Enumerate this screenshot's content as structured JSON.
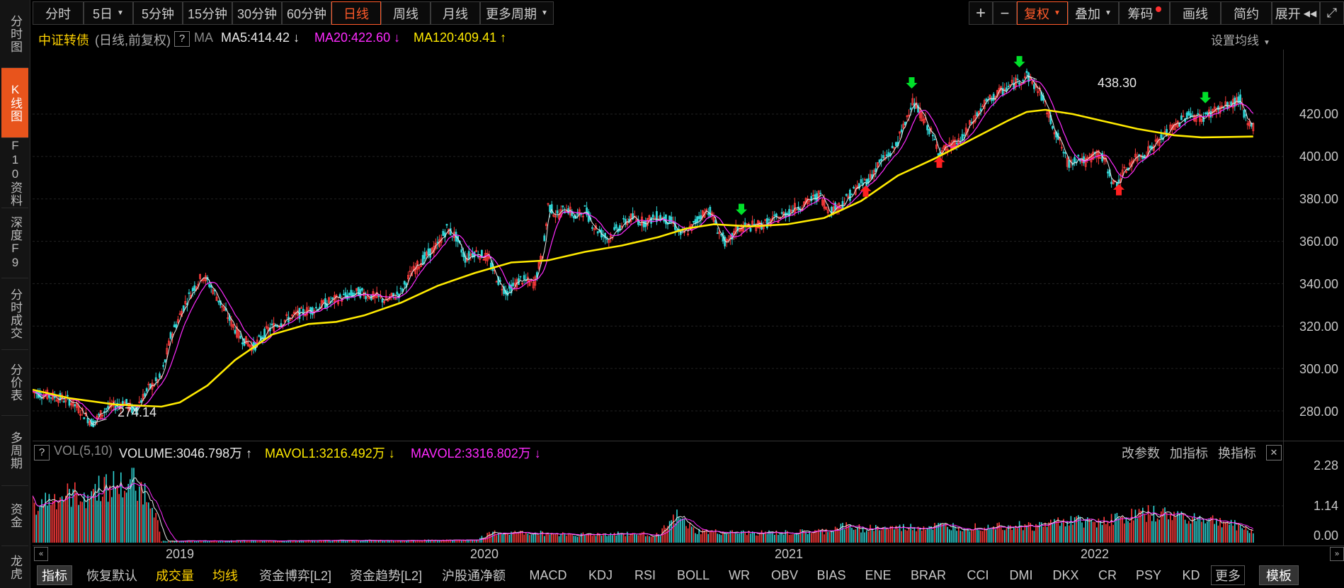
{
  "left_tabs": [
    {
      "label": "分时图"
    },
    {
      "label": "K线图"
    },
    {
      "label": "F10资料"
    },
    {
      "label": "深度F9"
    },
    {
      "label": "分时成交"
    },
    {
      "label": "分价表"
    },
    {
      "label": "多周期"
    },
    {
      "label": "资金"
    },
    {
      "label": "龙虎"
    }
  ],
  "toolbar": {
    "periods": [
      "分时",
      "5日",
      "5分钟",
      "15分钟",
      "30分钟",
      "60分钟",
      "日线",
      "周线",
      "月线",
      "更多周期"
    ],
    "active_period": "日线",
    "right": [
      "复权",
      "叠加",
      "筹码",
      "画线",
      "简约",
      "展开"
    ],
    "plus": "+",
    "minus": "−"
  },
  "header": {
    "name": "中证转债",
    "mode": "(日线,前复权)",
    "help": "?",
    "ma_label": "MA",
    "ma5": "MA5:414.42",
    "ma20": "MA20:422.60",
    "ma120": "MA120:409.41",
    "settings": "设置均线"
  },
  "vol_header": {
    "help": "?",
    "label": "VOL(5,10)",
    "volume": "VOLUME:3046.798万",
    "mavol1": "MAVOL1:3216.492万",
    "mavol2": "MAVOL2:3316.802万",
    "links": [
      "改参数",
      "加指标",
      "换指标"
    ],
    "close": "✕"
  },
  "annotations": {
    "high": "438.30",
    "low": "274.14"
  },
  "bottom_tabs": [
    "指标",
    "恢复默认",
    "成交量",
    "均线",
    "资金博弈[L2]",
    "资金趋势[L2]",
    "沪股通净额",
    "MACD",
    "KDJ",
    "RSI",
    "BOLL",
    "WR",
    "OBV",
    "BIAS",
    "ENE",
    "BRAR",
    "CCI",
    "DMI",
    "DKX",
    "CR",
    "PSY",
    "KD",
    "更多",
    "模板"
  ],
  "colors": {
    "up": "#ff3b3b",
    "down": "#2fd4d4",
    "ma5": "#e8e8e8",
    "ma20": "#ff2bff",
    "ma120": "#ffea00",
    "accent": "#e8541c"
  },
  "chart_data": [
    {
      "type": "candlestick",
      "title": "中证转债",
      "x_ticks": [
        "2019",
        "2020",
        "2021",
        "2022"
      ],
      "ylim": [
        265,
        448
      ],
      "y_ticks": [
        "280.00",
        "300.00",
        "320.00",
        "340.00",
        "360.00",
        "380.00",
        "400.00",
        "420.00"
      ],
      "price_path": [
        [
          0,
          289
        ],
        [
          20,
          287
        ],
        [
          40,
          285
        ],
        [
          55,
          279
        ],
        [
          65,
          274.14
        ],
        [
          80,
          281
        ],
        [
          100,
          284
        ],
        [
          110,
          280
        ],
        [
          125,
          290
        ],
        [
          140,
          296
        ],
        [
          150,
          315
        ],
        [
          165,
          330
        ],
        [
          175,
          338
        ],
        [
          185,
          344
        ],
        [
          195,
          338
        ],
        [
          210,
          326
        ],
        [
          225,
          315
        ],
        [
          240,
          310
        ],
        [
          255,
          318
        ],
        [
          270,
          322
        ],
        [
          290,
          326
        ],
        [
          305,
          328
        ],
        [
          320,
          331
        ],
        [
          340,
          334
        ],
        [
          355,
          336
        ],
        [
          370,
          334
        ],
        [
          385,
          332
        ],
        [
          400,
          336
        ],
        [
          410,
          344
        ],
        [
          425,
          352
        ],
        [
          440,
          358
        ],
        [
          450,
          366
        ],
        [
          460,
          362
        ],
        [
          470,
          352
        ],
        [
          480,
          355
        ],
        [
          495,
          352
        ],
        [
          505,
          342
        ],
        [
          515,
          336
        ],
        [
          530,
          342
        ],
        [
          545,
          340
        ],
        [
          555,
          356
        ],
        [
          560,
          377
        ],
        [
          570,
          372
        ],
        [
          580,
          376
        ],
        [
          590,
          371
        ],
        [
          600,
          375
        ],
        [
          610,
          367
        ],
        [
          625,
          361
        ],
        [
          635,
          366
        ],
        [
          650,
          371
        ],
        [
          665,
          369
        ],
        [
          680,
          372
        ],
        [
          695,
          369
        ],
        [
          705,
          363
        ],
        [
          715,
          366
        ],
        [
          725,
          372
        ],
        [
          735,
          375
        ],
        [
          745,
          365
        ],
        [
          755,
          358
        ],
        [
          765,
          366
        ],
        [
          780,
          367
        ],
        [
          795,
          368
        ],
        [
          810,
          371
        ],
        [
          825,
          375
        ],
        [
          840,
          378
        ],
        [
          855,
          382
        ],
        [
          865,
          374
        ],
        [
          880,
          378
        ],
        [
          895,
          385
        ],
        [
          910,
          390
        ],
        [
          920,
          397
        ],
        [
          935,
          403
        ],
        [
          945,
          412
        ],
        [
          955,
          426
        ],
        [
          965,
          420
        ],
        [
          975,
          412
        ],
        [
          985,
          402
        ],
        [
          995,
          404
        ],
        [
          1010,
          408
        ],
        [
          1020,
          416
        ],
        [
          1035,
          425
        ],
        [
          1050,
          430
        ],
        [
          1065,
          434
        ],
        [
          1080,
          438.3
        ],
        [
          1095,
          430
        ],
        [
          1105,
          418
        ],
        [
          1115,
          408
        ],
        [
          1125,
          396
        ],
        [
          1135,
          400
        ],
        [
          1145,
          397
        ],
        [
          1155,
          402
        ],
        [
          1165,
          398
        ],
        [
          1175,
          386
        ],
        [
          1185,
          392
        ],
        [
          1195,
          398
        ],
        [
          1210,
          402
        ],
        [
          1225,
          408
        ],
        [
          1240,
          414
        ],
        [
          1255,
          420
        ],
        [
          1270,
          418
        ],
        [
          1285,
          422
        ],
        [
          1300,
          424
        ],
        [
          1312,
          427
        ],
        [
          1320,
          414
        ],
        [
          1326,
          414.42
        ]
      ],
      "ma120": [
        [
          0,
          290
        ],
        [
          40,
          286
        ],
        [
          90,
          283
        ],
        [
          140,
          282
        ],
        [
          160,
          284
        ],
        [
          190,
          292
        ],
        [
          220,
          304
        ],
        [
          260,
          316
        ],
        [
          300,
          321
        ],
        [
          330,
          322
        ],
        [
          360,
          325
        ],
        [
          400,
          331
        ],
        [
          440,
          339
        ],
        [
          480,
          345
        ],
        [
          520,
          350
        ],
        [
          560,
          351
        ],
        [
          600,
          355
        ],
        [
          640,
          358
        ],
        [
          680,
          362
        ],
        [
          710,
          366
        ],
        [
          740,
          368
        ],
        [
          780,
          367
        ],
        [
          820,
          368
        ],
        [
          860,
          371
        ],
        [
          900,
          379
        ],
        [
          940,
          391
        ],
        [
          980,
          399
        ],
        [
          1020,
          408
        ],
        [
          1060,
          417
        ],
        [
          1080,
          421
        ],
        [
          1100,
          422
        ],
        [
          1130,
          420
        ],
        [
          1160,
          417
        ],
        [
          1200,
          413
        ],
        [
          1240,
          410
        ],
        [
          1270,
          409
        ],
        [
          1300,
          409.2
        ],
        [
          1326,
          409.41
        ]
      ],
      "signals": [
        {
          "type": "sell",
          "x": 955
        },
        {
          "type": "sell",
          "x": 1072
        },
        {
          "type": "sell",
          "x": 1274
        },
        {
          "type": "sell",
          "x": 770
        },
        {
          "type": "buy",
          "x": 985
        },
        {
          "type": "buy",
          "x": 905
        },
        {
          "type": "buy",
          "x": 1180
        }
      ]
    },
    {
      "type": "bar",
      "title": "VOL(5,10)",
      "ylim": [
        0,
        2.28
      ],
      "y_ticks": [
        "2.28",
        "1.14",
        "0.00"
      ],
      "volume_profile": [
        [
          0,
          1.2
        ],
        [
          30,
          1.4
        ],
        [
          60,
          1.5
        ],
        [
          80,
          1.8
        ],
        [
          100,
          1.7
        ],
        [
          110,
          1.9
        ],
        [
          130,
          1.3
        ],
        [
          140,
          0.05
        ],
        [
          480,
          0.08
        ],
        [
          500,
          0.3
        ],
        [
          540,
          0.3
        ],
        [
          600,
          0.25
        ],
        [
          640,
          0.28
        ],
        [
          680,
          0.25
        ],
        [
          700,
          0.8
        ],
        [
          720,
          0.35
        ],
        [
          760,
          0.3
        ],
        [
          820,
          0.3
        ],
        [
          860,
          0.35
        ],
        [
          880,
          0.5
        ],
        [
          900,
          0.45
        ],
        [
          940,
          0.45
        ],
        [
          980,
          0.5
        ],
        [
          1020,
          0.5
        ],
        [
          1060,
          0.55
        ],
        [
          1090,
          0.5
        ],
        [
          1120,
          0.7
        ],
        [
          1150,
          0.65
        ],
        [
          1180,
          0.75
        ],
        [
          1210,
          0.9
        ],
        [
          1240,
          0.85
        ],
        [
          1270,
          0.75
        ],
        [
          1300,
          0.6
        ],
        [
          1326,
          0.35
        ]
      ]
    }
  ]
}
